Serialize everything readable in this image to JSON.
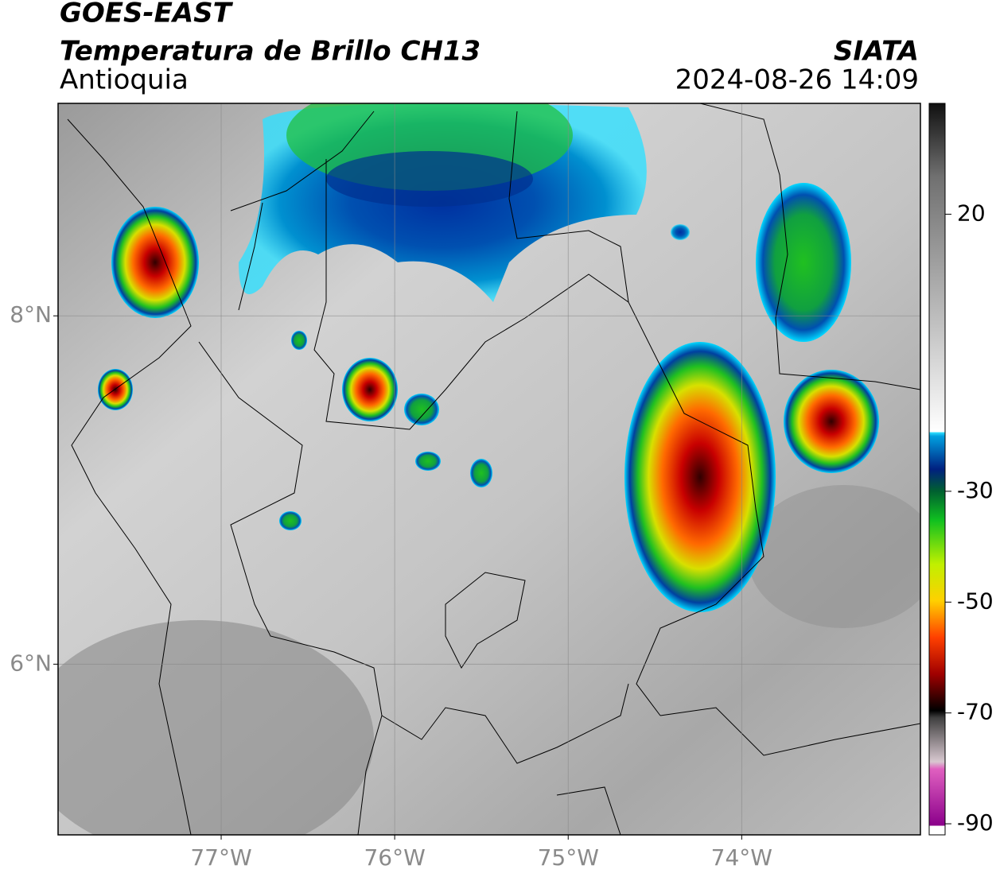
{
  "chart_data": {
    "type": "map",
    "title": "GOES-EAST",
    "subtitle": "Temperatura de Brillo CH13",
    "region": "Antioquia",
    "source": "SIATA",
    "datetime": "2024-08-26 14:09",
    "xlim": [
      -77.94,
      -72.97
    ],
    "ylim": [
      5.02,
      9.22
    ],
    "xticks": [
      {
        "value": -77,
        "label": "77°W"
      },
      {
        "value": -76,
        "label": "76°W"
      },
      {
        "value": -75,
        "label": "75°W"
      },
      {
        "value": -74,
        "label": "74°W"
      }
    ],
    "yticks": [
      {
        "value": 6,
        "label": "6°N"
      },
      {
        "value": 8,
        "label": "8°N"
      }
    ],
    "grid": true,
    "colorbar": {
      "lim": [
        -92,
        40
      ],
      "ticks": [
        20,
        -30,
        -50,
        -70,
        -90
      ]
    }
  }
}
